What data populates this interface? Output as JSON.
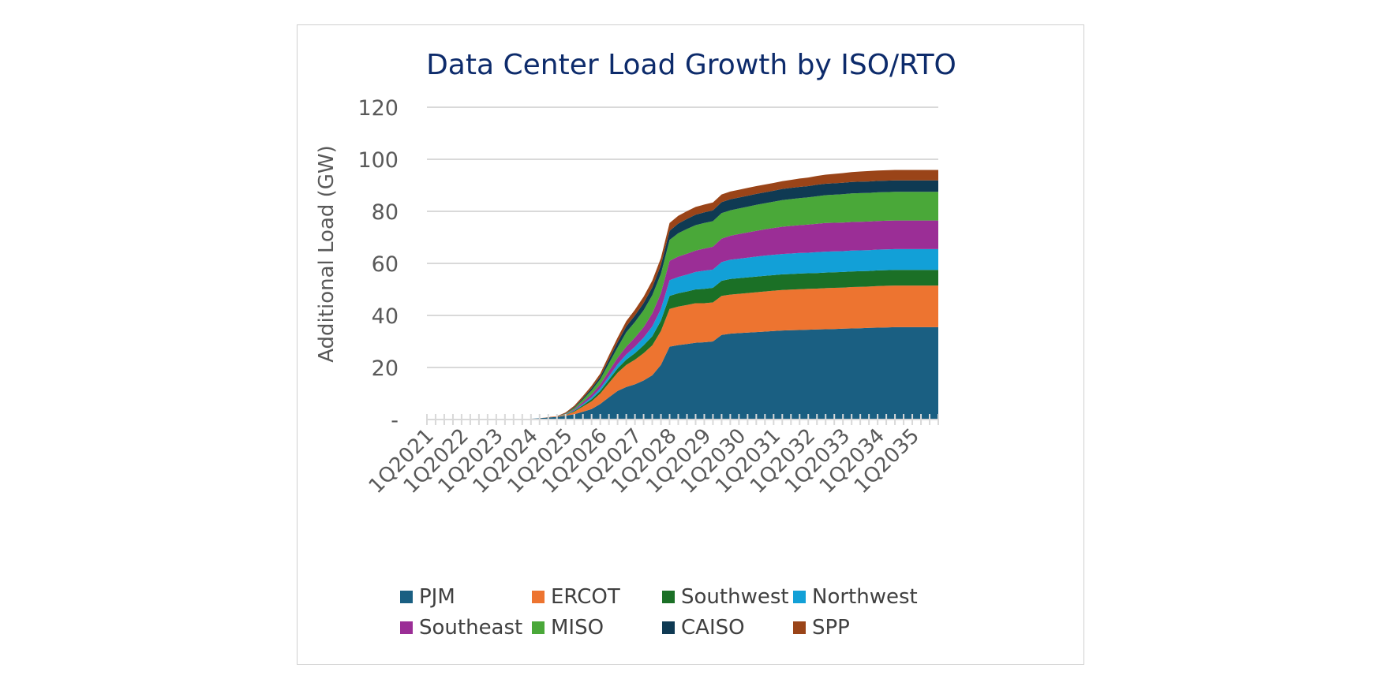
{
  "chart_data": {
    "type": "area",
    "stacked": true,
    "title": "Data Center Load Growth by ISO/RTO",
    "xlabel": "",
    "ylabel": "Additional Load (GW)",
    "ylim": [
      0,
      120
    ],
    "yticks": [
      0,
      20,
      40,
      60,
      80,
      100,
      120
    ],
    "ytick_labels": [
      "-",
      "20",
      "40",
      "60",
      "80",
      "100",
      "120"
    ],
    "grid": true,
    "legend_position": "bottom",
    "x_tick_labels": [
      "1Q2021",
      "1Q2022",
      "1Q2023",
      "1Q2024",
      "1Q2025",
      "1Q2026",
      "1Q2027",
      "1Q2028",
      "1Q2029",
      "1Q2030",
      "1Q2031",
      "1Q2032",
      "1Q2033",
      "1Q2034",
      "1Q2035"
    ],
    "quarters_per_label": 4,
    "x": [
      "Q1 2021",
      "Q2 2021",
      "Q3 2021",
      "Q4 2021",
      "Q1 2022",
      "Q2 2022",
      "Q3 2022",
      "Q4 2022",
      "Q1 2023",
      "Q2 2023",
      "Q3 2023",
      "Q4 2023",
      "Q1 2024",
      "Q2 2024",
      "Q3 2024",
      "Q4 2024",
      "Q1 2025",
      "Q2 2025",
      "Q3 2025",
      "Q4 2025",
      "Q1 2026",
      "Q2 2026",
      "Q3 2026",
      "Q4 2026",
      "Q1 2027",
      "Q2 2027",
      "Q3 2027",
      "Q4 2027",
      "Q1 2028",
      "Q2 2028",
      "Q3 2028",
      "Q4 2028",
      "Q1 2029",
      "Q2 2029",
      "Q3 2029",
      "Q4 2029",
      "Q1 2030",
      "Q2 2030",
      "Q3 2030",
      "Q4 2030",
      "Q1 2031",
      "Q2 2031",
      "Q3 2031",
      "Q4 2031",
      "Q1 2032",
      "Q2 2032",
      "Q3 2032",
      "Q4 2032",
      "Q1 2033",
      "Q2 2033",
      "Q3 2033",
      "Q4 2033",
      "Q1 2034",
      "Q2 2034",
      "Q3 2034",
      "Q4 2034",
      "Q1 2035",
      "Q2 2035",
      "Q3 2035",
      "Q4 2035"
    ],
    "series": [
      {
        "name": "PJM",
        "color": "#1a5f82",
        "values": [
          0,
          0,
          0,
          0,
          0,
          0,
          0,
          0,
          0,
          0,
          0,
          0,
          0.3,
          0.5,
          0.8,
          1,
          1.5,
          2,
          3,
          4,
          6,
          8.5,
          11,
          12.5,
          13.5,
          15,
          17,
          21,
          28,
          28.6,
          29,
          29.5,
          29.7,
          30,
          32.5,
          33,
          33.2,
          33.4,
          33.6,
          33.8,
          34,
          34.2,
          34.3,
          34.4,
          34.5,
          34.6,
          34.7,
          34.8,
          34.9,
          35,
          35.1,
          35.2,
          35.3,
          35.4,
          35.5,
          35.5,
          35.5,
          35.5,
          35.5,
          35.5
        ]
      },
      {
        "name": "ERCOT",
        "color": "#ed7430",
        "values": [
          0,
          0,
          0,
          0,
          0,
          0,
          0,
          0,
          0,
          0,
          0,
          0,
          0,
          0,
          0.1,
          0.2,
          0.3,
          1,
          2,
          3,
          4,
          5.5,
          7,
          8.5,
          9.5,
          10.5,
          11.5,
          13,
          14.5,
          14.8,
          15,
          15.2,
          15,
          15,
          15,
          15,
          15.1,
          15.2,
          15.3,
          15.4,
          15.5,
          15.6,
          15.6,
          15.7,
          15.7,
          15.7,
          15.8,
          15.8,
          15.8,
          15.9,
          15.9,
          15.9,
          16,
          16,
          16,
          16,
          16,
          16,
          16,
          16
        ]
      },
      {
        "name": "Southwest",
        "color": "#1b7026",
        "values": [
          0,
          0,
          0,
          0,
          0,
          0,
          0,
          0,
          0,
          0,
          0,
          0,
          0,
          0,
          0,
          0,
          0.1,
          0.3,
          0.5,
          0.8,
          1,
          1.3,
          1.6,
          2,
          2.5,
          3,
          3.5,
          4,
          5,
          5.1,
          5.2,
          5.3,
          5.5,
          5.6,
          5.8,
          6,
          6,
          6,
          6,
          6,
          6,
          6,
          6,
          6,
          6,
          6,
          6,
          6,
          6,
          6,
          6,
          6,
          6,
          6,
          6,
          6,
          6,
          6,
          6,
          6
        ]
      },
      {
        "name": "Northwest",
        "color": "#12a0d7",
        "values": [
          0,
          0,
          0,
          0,
          0,
          0,
          0,
          0,
          0,
          0,
          0,
          0,
          0,
          0,
          0,
          0,
          0.1,
          0.2,
          0.4,
          0.7,
          1,
          1.3,
          1.6,
          2,
          2.5,
          3,
          3.8,
          4.5,
          6,
          6.3,
          6.5,
          6.7,
          7,
          7,
          7.2,
          7.4,
          7.5,
          7.6,
          7.7,
          7.8,
          7.8,
          7.8,
          7.9,
          7.9,
          7.9,
          8,
          8,
          8,
          8,
          8,
          8,
          8,
          8,
          8,
          8,
          8,
          8,
          8,
          8,
          8
        ]
      },
      {
        "name": "Southeast",
        "color": "#9b2e96",
        "values": [
          0,
          0,
          0,
          0,
          0,
          0,
          0,
          0,
          0,
          0,
          0,
          0,
          0,
          0,
          0,
          0,
          0.1,
          0.4,
          0.8,
          1.2,
          1.5,
          2,
          2.5,
          3,
          3.5,
          4,
          5,
          6,
          7.5,
          7.8,
          8,
          8.2,
          8.5,
          8.8,
          9,
          9.2,
          9.5,
          9.7,
          9.9,
          10.1,
          10.3,
          10.5,
          10.6,
          10.7,
          10.8,
          10.9,
          11,
          11,
          11,
          11,
          11,
          11,
          11,
          11,
          11,
          11,
          11,
          11,
          11,
          11
        ]
      },
      {
        "name": "MISO",
        "color": "#4aa839",
        "values": [
          0,
          0,
          0,
          0,
          0,
          0,
          0,
          0,
          0,
          0,
          0,
          0,
          0,
          0,
          0,
          0,
          0.1,
          0.5,
          1,
          1.5,
          2,
          3,
          4,
          5.5,
          6,
          6.5,
          7,
          7.5,
          8,
          9,
          9.5,
          9.8,
          9.8,
          9.8,
          9.8,
          9.8,
          9.8,
          9.9,
          10,
          10,
          10.1,
          10.2,
          10.3,
          10.4,
          10.5,
          10.6,
          10.7,
          10.8,
          10.9,
          11,
          11,
          11,
          11,
          11,
          11,
          11,
          11,
          11,
          11,
          11
        ]
      },
      {
        "name": "CAISO",
        "color": "#0f3a53",
        "values": [
          0,
          0,
          0,
          0,
          0,
          0,
          0,
          0,
          0,
          0,
          0,
          0,
          0,
          0,
          0,
          0,
          0.1,
          0.3,
          0.5,
          0.8,
          1,
          1.5,
          2,
          2.3,
          2.5,
          2.8,
          3,
          3.3,
          3.5,
          3.7,
          3.9,
          4,
          4.1,
          4.2,
          4.2,
          4.2,
          4.2,
          4.2,
          4.2,
          4.2,
          4.2,
          4.3,
          4.3,
          4.3,
          4.3,
          4.4,
          4.4,
          4.4,
          4.4,
          4.4,
          4.4,
          4.4,
          4.4,
          4.4,
          4.4,
          4.4,
          4.4,
          4.4,
          4.4,
          4.4
        ]
      },
      {
        "name": "SPP",
        "color": "#9a4418",
        "values": [
          0,
          0,
          0,
          0,
          0,
          0,
          0,
          0,
          0,
          0,
          0,
          0,
          0,
          0,
          0,
          0.1,
          0.4,
          0.6,
          0.8,
          1,
          1.2,
          1.5,
          1.8,
          2,
          2.2,
          2.4,
          2.6,
          2.8,
          3,
          3,
          3,
          3,
          3,
          3,
          3,
          3,
          3,
          3,
          3,
          3,
          3,
          3,
          3.1,
          3.2,
          3.3,
          3.4,
          3.5,
          3.6,
          3.7,
          3.8,
          3.9,
          4,
          4,
          4,
          4,
          4,
          4,
          4,
          4,
          4
        ]
      }
    ]
  }
}
